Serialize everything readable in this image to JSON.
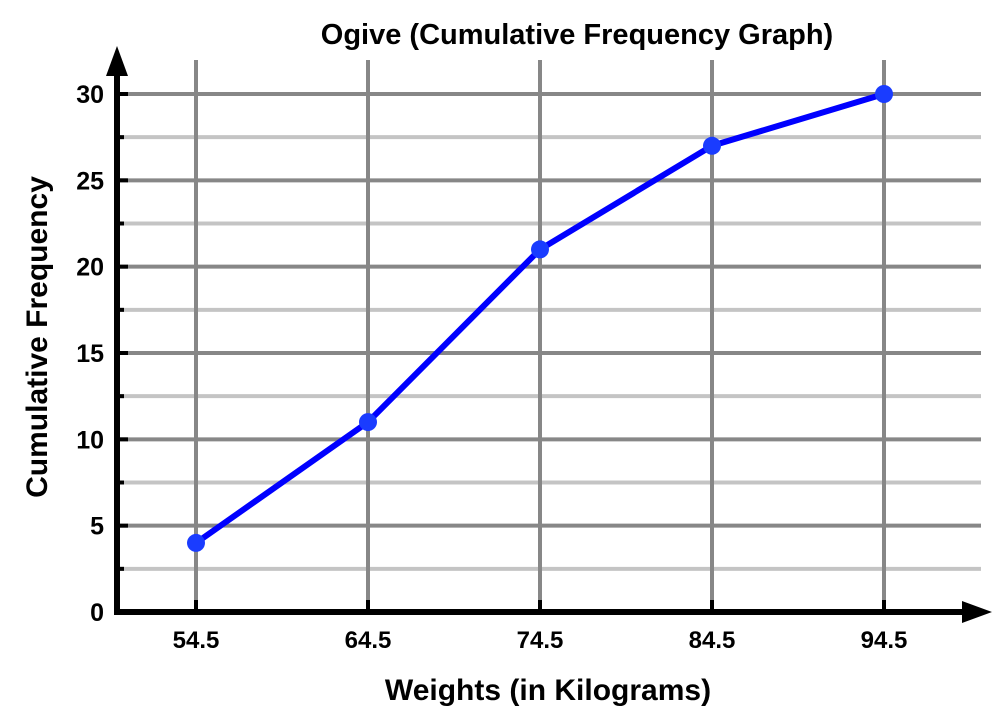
{
  "chart_data": {
    "type": "line",
    "title": "Ogive (Cumulative Frequency Graph)",
    "xlabel": "Weights (in Kilograms)",
    "ylabel": "Cumulative Frequency",
    "categories": [
      "54.5",
      "64.5",
      "74.5",
      "84.5",
      "94.5"
    ],
    "values": [
      4,
      11,
      21,
      27,
      30
    ],
    "ylim": [
      0,
      30
    ],
    "yticks": [
      "0",
      "5",
      "10",
      "15",
      "20",
      "25",
      "30"
    ],
    "ytick_values": [
      0,
      5,
      10,
      15,
      20,
      25,
      30
    ],
    "minor_step": 2.5,
    "grid": true,
    "colors": {
      "line": "#0000ff",
      "marker": "#1a3cff",
      "major_grid": "#878787",
      "minor_grid": "#c4c4c4",
      "axis": "#000000"
    }
  }
}
